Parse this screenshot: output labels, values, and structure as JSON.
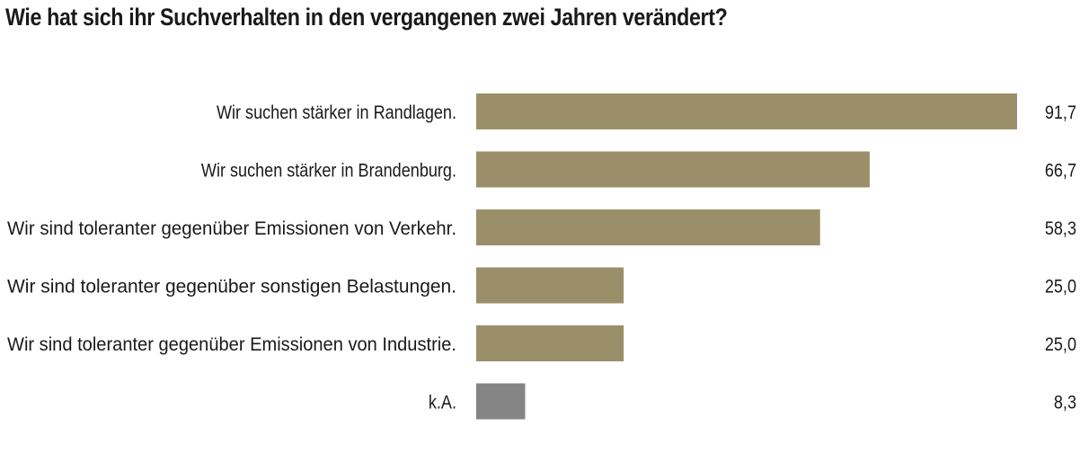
{
  "chart_data": {
    "type": "bar",
    "orientation": "horizontal",
    "title": "Wie hat sich ihr Suchverhalten in den vergangenen zwei Jahren verändert?",
    "categories": [
      "Wir suchen stärker in Randlagen.",
      "Wir suchen stärker in Brandenburg.",
      "Wir sind toleranter gegenüber Emissionen von Verkehr.",
      "Wir sind toleranter gegenüber sonstigen Belastungen.",
      "Wir sind toleranter gegenüber Emissionen von Industrie.",
      "k.A."
    ],
    "values": [
      91.7,
      66.7,
      58.3,
      25.0,
      25.0,
      8.3
    ],
    "value_labels": [
      "91,7",
      "66,7",
      "58,3",
      "25,0",
      "25,0",
      "8,3"
    ],
    "colors": {
      "bar": "#9b8f69",
      "bar_na": "#858585"
    },
    "xlim": [
      0,
      100
    ],
    "grid": false,
    "legend": "none"
  }
}
